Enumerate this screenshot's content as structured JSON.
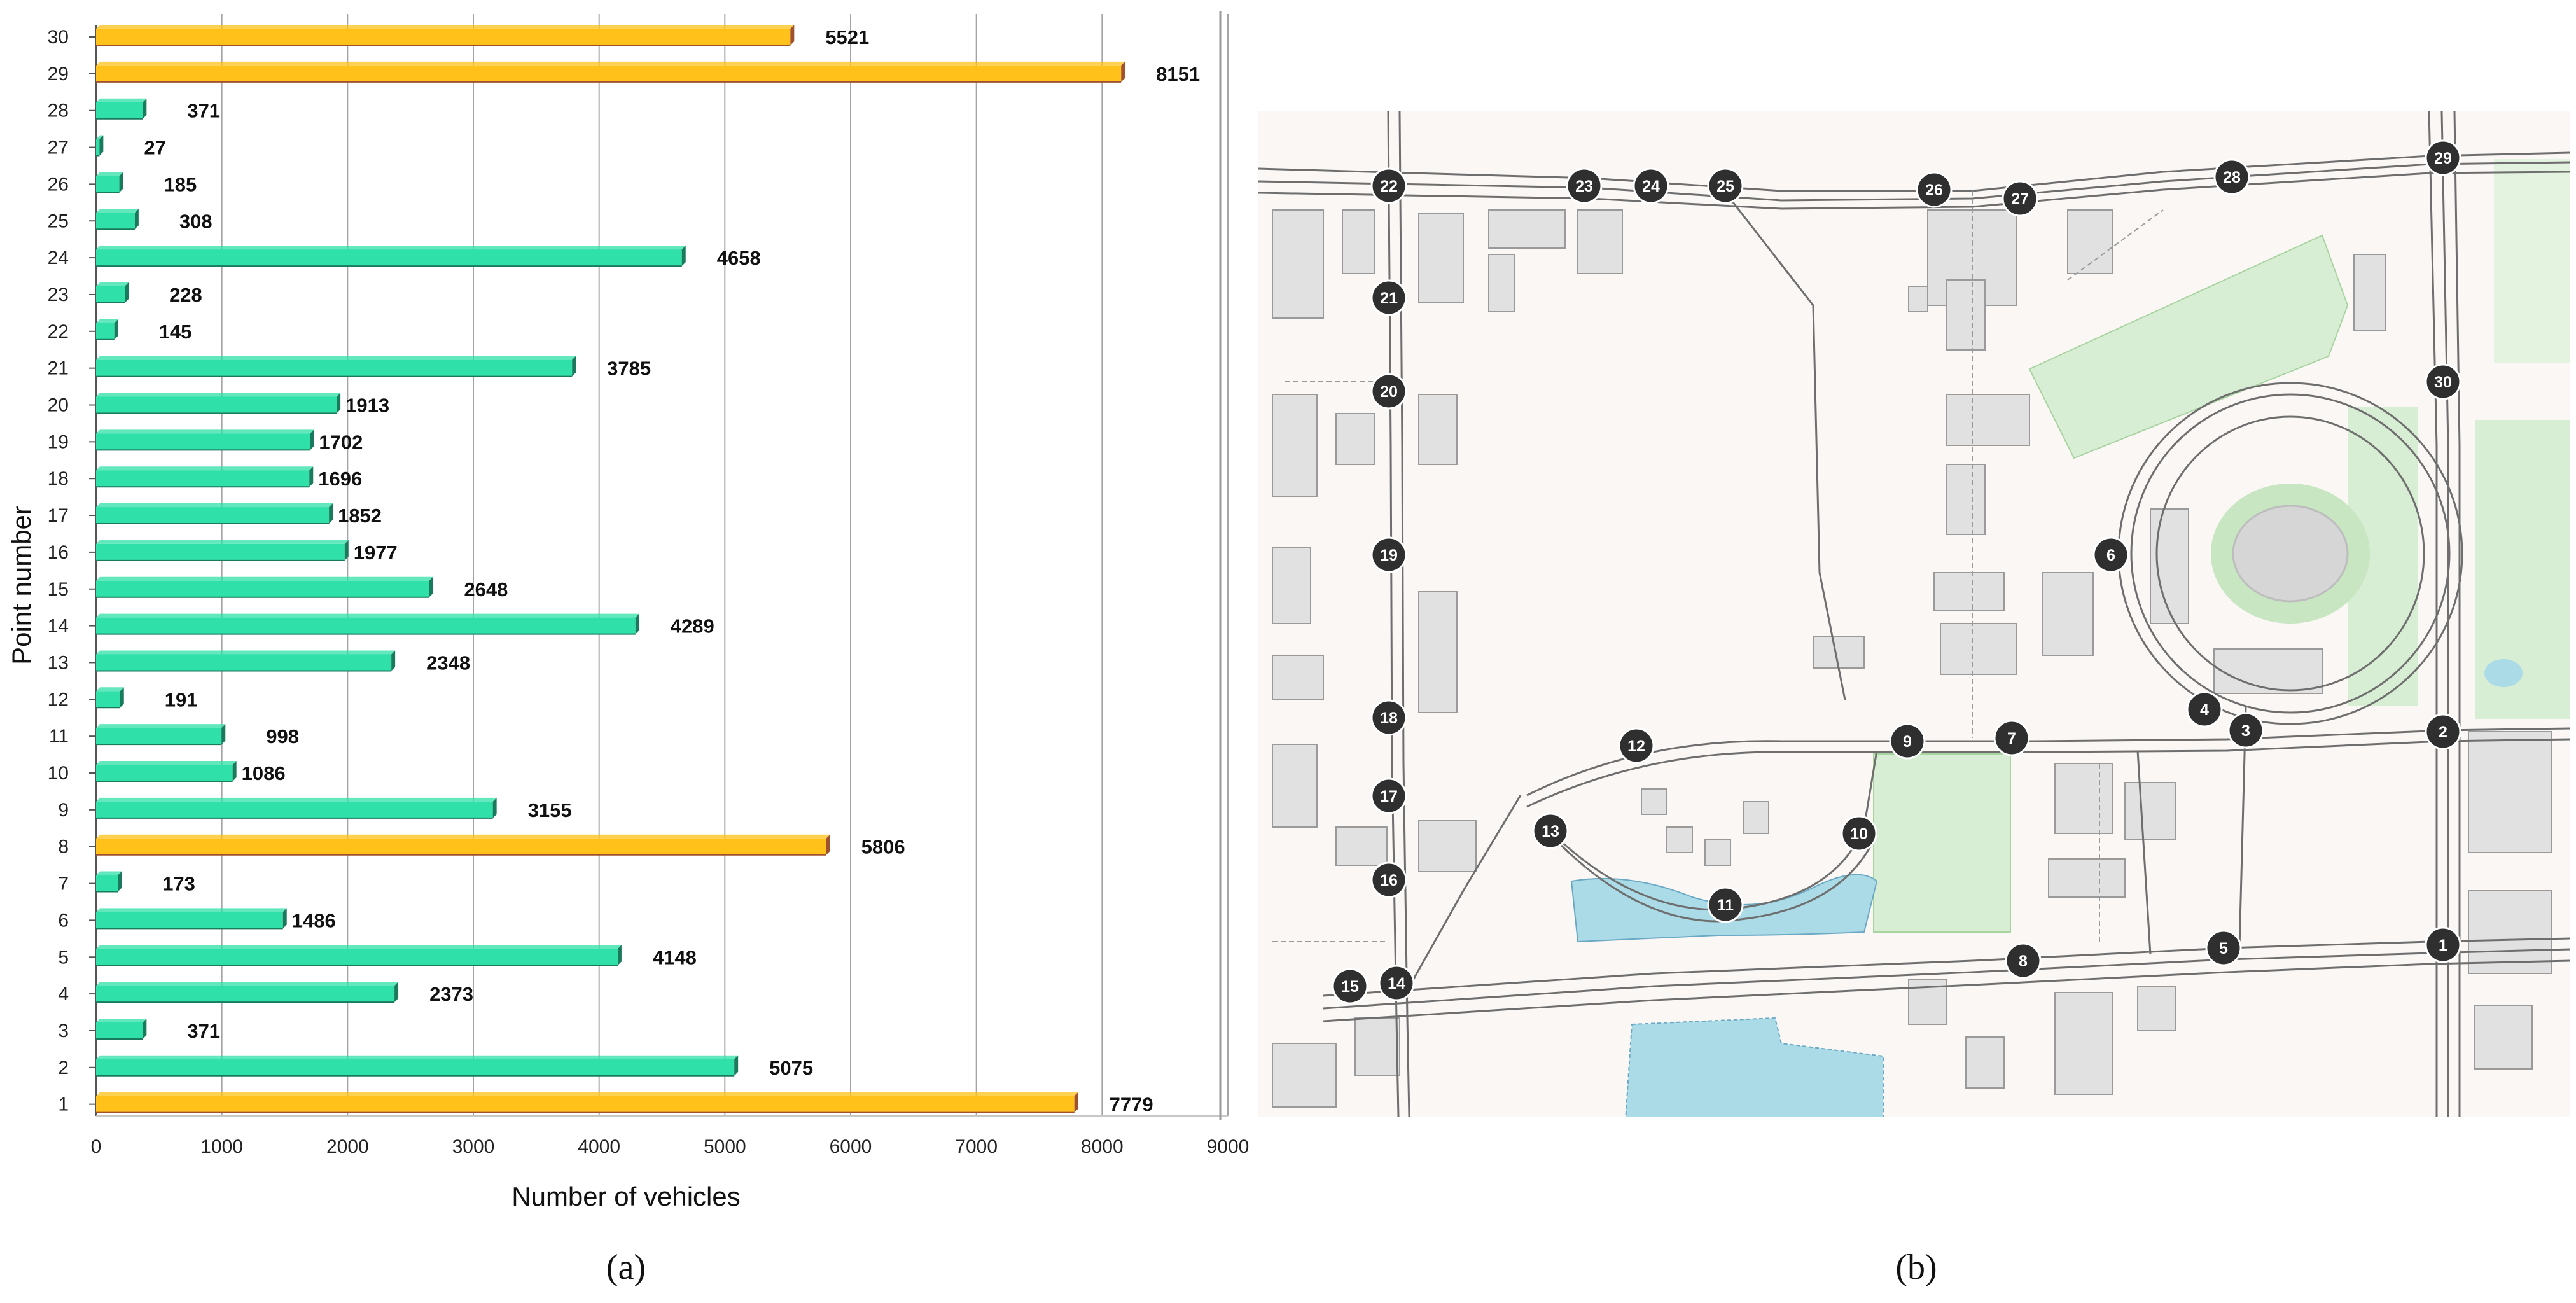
{
  "chart_data": {
    "type": "bar",
    "orientation": "horizontal",
    "title": "",
    "xlabel": "Number of vehicles",
    "ylabel": "Point number",
    "xlim": [
      0,
      9000
    ],
    "x_ticks": [
      "0",
      "1000",
      "2000",
      "3000",
      "4000",
      "5000",
      "6000",
      "7000",
      "8000",
      "9000"
    ],
    "grid": true,
    "categories": [
      "1",
      "2",
      "3",
      "4",
      "5",
      "6",
      "7",
      "8",
      "9",
      "10",
      "11",
      "12",
      "13",
      "14",
      "15",
      "16",
      "17",
      "18",
      "19",
      "20",
      "21",
      "22",
      "23",
      "24",
      "25",
      "26",
      "27",
      "28",
      "29",
      "30"
    ],
    "values": [
      7779,
      5075,
      371,
      2373,
      4148,
      1486,
      173,
      5806,
      3155,
      1086,
      998,
      191,
      2348,
      4289,
      2648,
      1977,
      1852,
      1696,
      1702,
      1913,
      3785,
      145,
      228,
      4658,
      308,
      185,
      27,
      371,
      8151,
      5521
    ],
    "value_labels": [
      "7779",
      "5075",
      "371",
      "2373",
      "4148",
      "1486",
      "173",
      "5806",
      "3155",
      "1086",
      "998",
      "191",
      "2348",
      "4289",
      "2648",
      "1977",
      "1852",
      "1696",
      "1702",
      "1913",
      "3785",
      "145",
      "228",
      "4658",
      "308",
      "185",
      "27",
      "371",
      "8151",
      "5521"
    ],
    "highlighted": [
      "1",
      "8",
      "29",
      "30"
    ],
    "colors": {
      "regular": "#2fe0a8",
      "regular_dark": "#1a7a5c",
      "highlight": "#ffc11a",
      "highlight_dark": "#a0522d"
    }
  },
  "panel_labels": {
    "a": "(a)",
    "b": "(b)"
  },
  "map": {
    "description_colors": {
      "background": "#faf7f5",
      "road": "#6e6e6e",
      "park": "#d8eed4",
      "water": "#aadbe6",
      "building": "#dcdcdc"
    },
    "points": [
      {
        "id": "1",
        "label": "1"
      },
      {
        "id": "2",
        "label": "2"
      },
      {
        "id": "3",
        "label": "3"
      },
      {
        "id": "4",
        "label": "4"
      },
      {
        "id": "5",
        "label": "5"
      },
      {
        "id": "6",
        "label": "6"
      },
      {
        "id": "7",
        "label": "7"
      },
      {
        "id": "8",
        "label": "8"
      },
      {
        "id": "9",
        "label": "9"
      },
      {
        "id": "10",
        "label": "10"
      },
      {
        "id": "11",
        "label": "11"
      },
      {
        "id": "12",
        "label": "12"
      },
      {
        "id": "13",
        "label": "13"
      },
      {
        "id": "14",
        "label": "14"
      },
      {
        "id": "15",
        "label": "15"
      },
      {
        "id": "16",
        "label": "16"
      },
      {
        "id": "17",
        "label": "17"
      },
      {
        "id": "18",
        "label": "18"
      },
      {
        "id": "19",
        "label": "19"
      },
      {
        "id": "20",
        "label": "20"
      },
      {
        "id": "21",
        "label": "21"
      },
      {
        "id": "22",
        "label": "22"
      },
      {
        "id": "23",
        "label": "23"
      },
      {
        "id": "24",
        "label": "24"
      },
      {
        "id": "25",
        "label": "25"
      },
      {
        "id": "26",
        "label": "26"
      },
      {
        "id": "27",
        "label": "27"
      },
      {
        "id": "28",
        "label": "28"
      },
      {
        "id": "29",
        "label": "29"
      },
      {
        "id": "30",
        "label": "30"
      }
    ]
  }
}
